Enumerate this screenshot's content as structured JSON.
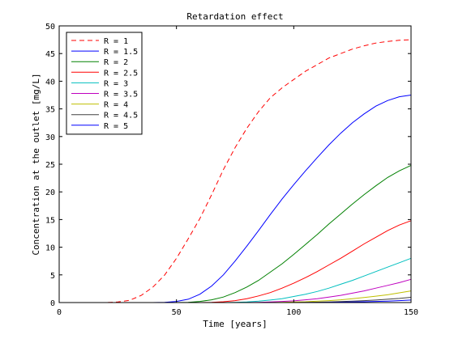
{
  "chart_data": {
    "type": "line",
    "title": "Retardation effect",
    "xlabel": "Time [years]",
    "ylabel": "Concentration at the outlet [mg/L]",
    "xlim": [
      0,
      150
    ],
    "ylim": [
      0,
      50
    ],
    "xticks": [
      0,
      50,
      100,
      150
    ],
    "yticks": [
      0,
      5,
      10,
      15,
      20,
      25,
      30,
      35,
      40,
      45,
      50
    ],
    "grid": false,
    "legend_position": "top-left",
    "x": [
      0,
      10,
      20,
      25,
      30,
      35,
      40,
      45,
      50,
      55,
      60,
      65,
      70,
      75,
      80,
      85,
      90,
      95,
      100,
      105,
      110,
      115,
      120,
      125,
      130,
      135,
      140,
      145,
      150
    ],
    "series": [
      {
        "name": "R = 1",
        "color": "#ff0000",
        "dashed": true,
        "values": [
          0,
          0,
          0,
          0.1,
          0.4,
          1.3,
          2.8,
          5.0,
          8.0,
          11.5,
          15.2,
          19.5,
          24.0,
          28.0,
          31.5,
          34.5,
          37.0,
          38.8,
          40.3,
          41.8,
          43.0,
          44.2,
          45.0,
          45.8,
          46.4,
          46.9,
          47.2,
          47.4,
          47.5
        ]
      },
      {
        "name": "R = 1.5",
        "color": "#0000ff",
        "dashed": false,
        "values": [
          0,
          0,
          0,
          0,
          0,
          0,
          0,
          0.05,
          0.2,
          0.6,
          1.5,
          3.0,
          5.0,
          7.5,
          10.2,
          13.0,
          15.9,
          18.7,
          21.3,
          23.8,
          26.2,
          28.5,
          30.6,
          32.5,
          34.1,
          35.5,
          36.5,
          37.2,
          37.5
        ]
      },
      {
        "name": "R = 2",
        "color": "#008000",
        "dashed": false,
        "values": [
          0,
          0,
          0,
          0,
          0,
          0,
          0,
          0,
          0,
          0.05,
          0.2,
          0.5,
          1.0,
          1.8,
          2.8,
          4.0,
          5.5,
          7.0,
          8.7,
          10.5,
          12.3,
          14.2,
          16.0,
          17.8,
          19.5,
          21.1,
          22.6,
          23.8,
          24.8
        ]
      },
      {
        "name": "R = 2.5",
        "color": "#ff0000",
        "dashed": false,
        "values": [
          0,
          0,
          0,
          0,
          0,
          0,
          0,
          0,
          0,
          0,
          0,
          0.05,
          0.15,
          0.35,
          0.7,
          1.2,
          1.8,
          2.6,
          3.5,
          4.5,
          5.6,
          6.8,
          8.0,
          9.3,
          10.6,
          11.8,
          13.0,
          14.0,
          14.8
        ]
      },
      {
        "name": "R = 3",
        "color": "#00bfbf",
        "dashed": false,
        "values": [
          0,
          0,
          0,
          0,
          0,
          0,
          0,
          0,
          0,
          0,
          0,
          0,
          0,
          0.05,
          0.12,
          0.25,
          0.45,
          0.7,
          1.1,
          1.5,
          2.0,
          2.6,
          3.3,
          4.0,
          4.8,
          5.6,
          6.4,
          7.2,
          8.0
        ]
      },
      {
        "name": "R = 3.5",
        "color": "#bf00bf",
        "dashed": false,
        "values": [
          0,
          0,
          0,
          0,
          0,
          0,
          0,
          0,
          0,
          0,
          0,
          0,
          0,
          0,
          0,
          0.05,
          0.1,
          0.2,
          0.3,
          0.5,
          0.7,
          1.0,
          1.3,
          1.7,
          2.1,
          2.6,
          3.1,
          3.6,
          4.2
        ]
      },
      {
        "name": "R = 4",
        "color": "#bfbf00",
        "dashed": false,
        "values": [
          0,
          0,
          0,
          0,
          0,
          0,
          0,
          0,
          0,
          0,
          0,
          0,
          0,
          0,
          0,
          0,
          0,
          0.05,
          0.1,
          0.15,
          0.25,
          0.35,
          0.5,
          0.7,
          0.9,
          1.15,
          1.4,
          1.75,
          2.1
        ]
      },
      {
        "name": "R = 4.5",
        "color": "#404040",
        "dashed": false,
        "values": [
          0,
          0,
          0,
          0,
          0,
          0,
          0,
          0,
          0,
          0,
          0,
          0,
          0,
          0,
          0,
          0,
          0,
          0,
          0,
          0.05,
          0.08,
          0.12,
          0.18,
          0.25,
          0.35,
          0.45,
          0.6,
          0.75,
          0.95
        ]
      },
      {
        "name": "R = 5",
        "color": "#0000ff",
        "dashed": false,
        "values": [
          0,
          0,
          0,
          0,
          0,
          0,
          0,
          0,
          0,
          0,
          0,
          0,
          0,
          0,
          0,
          0,
          0,
          0,
          0,
          0,
          0,
          0.05,
          0.07,
          0.1,
          0.15,
          0.2,
          0.27,
          0.35,
          0.45
        ]
      }
    ]
  }
}
